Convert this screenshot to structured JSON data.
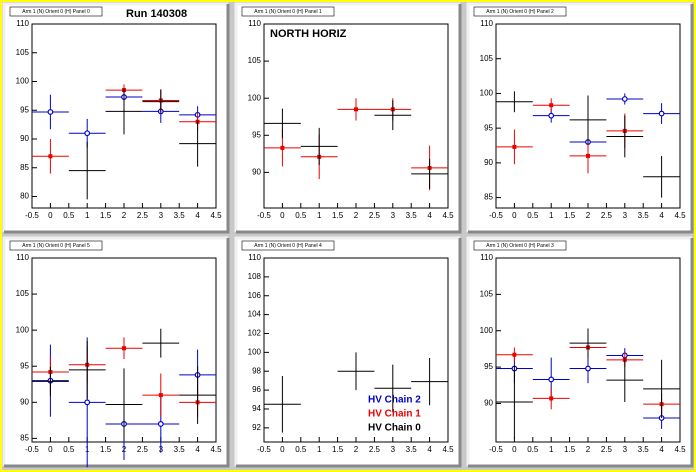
{
  "chart_data": [
    {
      "type": "scatter",
      "title": "Arm 1 (N) Orient 0 (H) Panel 0",
      "annotation": "Run 140308",
      "xlim": [
        -0.5,
        4.5
      ],
      "xticks": [
        -0.5,
        0,
        0.5,
        1,
        1.5,
        2,
        2.5,
        3,
        3.5,
        4,
        4.5
      ],
      "ylim": [
        78,
        110
      ],
      "yticks": [
        80,
        85,
        90,
        95,
        100,
        105,
        110
      ],
      "xerr": 0.5,
      "series": [
        {
          "color": "#0000cc",
          "marker": "circle",
          "x": [
            0,
            1,
            2,
            3,
            4
          ],
          "values": [
            94.7,
            91,
            97.3,
            94.8,
            94.2
          ],
          "errors": [
            3,
            2.5,
            1.5,
            2,
            1.5
          ]
        },
        {
          "color": "#ee0000",
          "marker": "square",
          "x": [
            0,
            2,
            3,
            4
          ],
          "values": [
            87,
            98.5,
            96.7,
            93
          ],
          "errors": [
            3,
            1,
            2,
            1.5
          ]
        },
        {
          "color": "#000000",
          "marker": "none",
          "x": [
            1,
            2,
            3,
            4
          ],
          "values": [
            84.5,
            94.8,
            96.5,
            89.2
          ],
          "errors": [
            5,
            4,
            2,
            4
          ]
        }
      ]
    },
    {
      "type": "scatter",
      "title": "Arm 1 (N) Orient 0 (H) Panel 1",
      "annotation": "NORTH HORIZ",
      "xlim": [
        -0.5,
        4.5
      ],
      "xticks": [
        -0.5,
        0,
        0.5,
        1,
        1.5,
        2,
        2.5,
        3,
        3.5,
        4,
        4.5
      ],
      "ylim": [
        85.2,
        110
      ],
      "yticks": [
        90,
        95,
        100,
        105,
        110
      ],
      "xerr": 0.5,
      "series": [
        {
          "color": "#ee0000",
          "marker": "square",
          "x": [
            0,
            1,
            2,
            3,
            4
          ],
          "values": [
            93.3,
            92.1,
            98.5,
            98.5,
            90.6
          ],
          "errors": [
            2.5,
            3,
            1.5,
            1.5,
            3
          ]
        },
        {
          "color": "#000000",
          "marker": "none",
          "x": [
            0,
            1,
            3,
            4
          ],
          "values": [
            96.6,
            93.5,
            97.7,
            89.8
          ],
          "errors": [
            2,
            2.5,
            2,
            2
          ]
        }
      ]
    },
    {
      "type": "scatter",
      "title": "Arm 1 (N) Orient 0 (H) Panel 2",
      "xlim": [
        -0.5,
        4.5
      ],
      "xticks": [
        -0.5,
        0,
        0.5,
        1,
        1.5,
        2,
        2.5,
        3,
        3.5,
        4,
        4.5
      ],
      "ylim": [
        83.5,
        110
      ],
      "yticks": [
        85,
        90,
        95,
        100,
        105,
        110
      ],
      "xerr": 0.5,
      "series": [
        {
          "color": "#0000cc",
          "marker": "circle",
          "x": [
            1,
            2,
            3,
            4
          ],
          "values": [
            96.8,
            93,
            99.2,
            97.1
          ],
          "errors": [
            1,
            2,
            0.8,
            1.5
          ]
        },
        {
          "color": "#ee0000",
          "marker": "square",
          "x": [
            0,
            1,
            2,
            3
          ],
          "values": [
            92.3,
            98.3,
            91,
            94.6
          ],
          "errors": [
            2.5,
            1,
            2.5,
            2.5
          ]
        },
        {
          "color": "#000000",
          "marker": "none",
          "x": [
            0,
            2,
            3,
            4
          ],
          "values": [
            98.8,
            96.2,
            93.8,
            88
          ],
          "errors": [
            1.5,
            3.5,
            3,
            3
          ]
        }
      ]
    },
    {
      "type": "scatter",
      "title": "Arm 1 (N) Orient 0 (H) Panel 5",
      "xlim": [
        -0.5,
        4.5
      ],
      "xticks": [
        -0.5,
        0,
        0.5,
        1,
        1.5,
        2,
        2.5,
        3,
        3.5,
        4,
        4.5
      ],
      "ylim": [
        84.5,
        110
      ],
      "yticks": [
        85,
        90,
        95,
        100,
        105,
        110
      ],
      "xerr": 0.5,
      "series": [
        {
          "color": "#0000cc",
          "marker": "circle",
          "x": [
            0,
            1,
            2,
            3,
            4
          ],
          "values": [
            93,
            90,
            87,
            87,
            93.8
          ],
          "errors": [
            5,
            9,
            5,
            4,
            3.5
          ]
        },
        {
          "color": "#ee0000",
          "marker": "square",
          "x": [
            0,
            1,
            2,
            3,
            4
          ],
          "values": [
            94.2,
            95.2,
            97.5,
            91,
            90
          ],
          "errors": [
            2,
            2.5,
            1.5,
            3,
            2
          ]
        },
        {
          "color": "#000000",
          "marker": "none",
          "x": [
            0,
            1,
            2,
            3,
            4
          ],
          "values": [
            92.9,
            94.5,
            89.7,
            98.2,
            91
          ],
          "errors": [
            2,
            4,
            5,
            2,
            4
          ]
        }
      ]
    },
    {
      "type": "scatter",
      "title": "Arm 1 (N) Orient 0 (H) Panel 4",
      "xlim": [
        -0.5,
        4.5
      ],
      "xticks": [
        -0.5,
        0,
        0.5,
        1,
        1.5,
        2,
        2.5,
        3,
        3.5,
        4,
        4.5
      ],
      "ylim": [
        90.5,
        110
      ],
      "yticks": [
        92,
        94,
        96,
        98,
        100,
        102,
        104,
        106,
        108,
        110
      ],
      "xerr": 0.5,
      "series": [
        {
          "name": "HV Chain 2",
          "color": "#0000cc",
          "marker": "circle",
          "x": [],
          "values": [],
          "errors": []
        },
        {
          "name": "HV Chain 1",
          "color": "#ee0000",
          "marker": "square",
          "x": [],
          "values": [],
          "errors": []
        },
        {
          "name": "HV Chain 0",
          "color": "#000000",
          "marker": "none",
          "x": [
            0,
            2,
            3,
            4
          ],
          "values": [
            94.5,
            98,
            96.2,
            96.9
          ],
          "errors": [
            3,
            2,
            2.5,
            2.5
          ]
        }
      ]
    },
    {
      "type": "scatter",
      "title": "Arm 1 (N) Orient 0 (H) Panel 3",
      "xlim": [
        -0.5,
        4.5
      ],
      "xticks": [
        -0.5,
        0,
        0.5,
        1,
        1.5,
        2,
        2.5,
        3,
        3.5,
        4,
        4.5
      ],
      "ylim": [
        84.7,
        110
      ],
      "yticks": [
        90,
        95,
        100,
        105,
        110
      ],
      "xerr": 0.5,
      "series": [
        {
          "color": "#0000cc",
          "marker": "circle",
          "x": [
            0,
            1,
            2,
            3,
            4
          ],
          "values": [
            94.8,
            93.3,
            94.8,
            96.6,
            88
          ],
          "errors": [
            2,
            3,
            2,
            1,
            1.5
          ]
        },
        {
          "color": "#ee0000",
          "marker": "square",
          "x": [
            0,
            1,
            2,
            3,
            4
          ],
          "values": [
            96.7,
            90.7,
            97.7,
            96,
            89.9
          ],
          "errors": [
            1,
            1.5,
            1,
            1,
            1.5
          ]
        },
        {
          "color": "#000000",
          "marker": "none",
          "x": [
            0,
            2,
            3,
            4
          ],
          "values": [
            90.2,
            98.3,
            93.2,
            92
          ],
          "errors": [
            5,
            2,
            3,
            4
          ]
        }
      ]
    }
  ]
}
